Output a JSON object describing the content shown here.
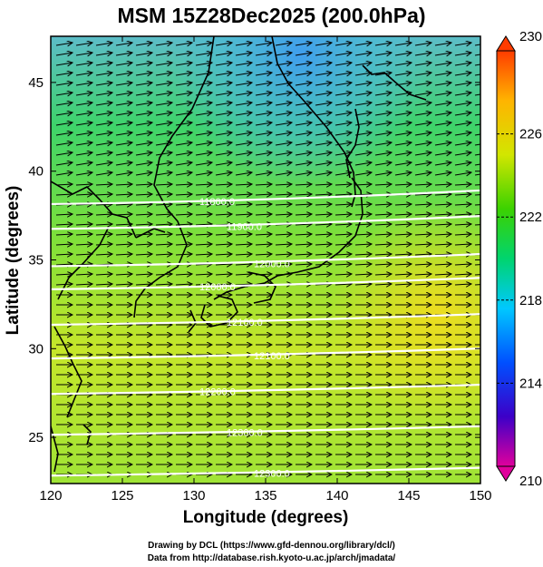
{
  "title": "MSM 15Z28Dec2025 (200.0hPa)",
  "credits": {
    "line1": "Drawing by DCL (https://www.gfd-dennou.org/library/dcl/)",
    "line2": "Data from http://database.rish.kyoto-u.ac.jp/arch/jmadata/"
  },
  "map": {
    "xlabel": "Longitude (degrees)",
    "ylabel": "Latitude  (degrees)",
    "x_range": [
      120,
      150
    ],
    "y_range": [
      22.4,
      47.6
    ],
    "x_ticks": [
      120,
      125,
      130,
      135,
      140,
      145,
      150
    ],
    "y_ticks": [
      25,
      30,
      35,
      40,
      45
    ],
    "shading": "temperature",
    "vectors": "wind"
  },
  "colorbar": {
    "range": [
      210,
      230
    ],
    "tick_labels": [
      "230",
      "226",
      "222",
      "218",
      "214",
      "210"
    ],
    "colors": [
      "#e0009c",
      "#3c00c8",
      "#0050ff",
      "#00c8ff",
      "#00d46e",
      "#3cd200",
      "#d2e600",
      "#ffb400",
      "#ff3c00"
    ]
  },
  "contours": [
    {
      "label": "11800.0",
      "lat": 38.3
    },
    {
      "label": "11900.0",
      "lat": 36.9
    },
    {
      "label": "12000.0",
      "lat": 34.8
    },
    {
      "label": "12000.0",
      "lat": 33.5
    },
    {
      "label": "12100.0",
      "lat": 31.5
    },
    {
      "label": "12100.0",
      "lat": 29.6
    },
    {
      "label": "12200.0",
      "lat": 27.6
    },
    {
      "label": "12300.0",
      "lat": 25.3
    },
    {
      "label": "12300.0",
      "lat": 23.0
    }
  ]
}
